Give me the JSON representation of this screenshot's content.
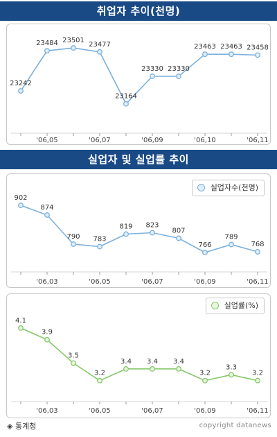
{
  "sections": {
    "employed_title": "취업자 추이(천명)",
    "unemployed_title": "실업자 및 실업률 추이"
  },
  "footer": {
    "source": "◈ 통계청",
    "credit": "copyright datanews"
  },
  "colors": {
    "banner": "#1a4a86",
    "blue_line": "#7bb0dc",
    "blue_fill": "#dfeefa",
    "green_line": "#86c96a",
    "green_fill": "#e9f7df"
  },
  "chart_data": [
    {
      "type": "line",
      "title": "취업자 추이(천명)",
      "x": [
        "",
        "'06,05",
        "",
        "'06,07",
        "",
        "'06,09",
        "",
        "'06,10",
        "",
        "'06,11"
      ],
      "series": [
        {
          "values": [
            23242,
            23484,
            23501,
            23477,
            23164,
            23330,
            23330,
            23463,
            23463,
            23458
          ]
        }
      ],
      "ylim": [
        23100,
        23560
      ],
      "grid": false,
      "legend": "none"
    },
    {
      "type": "line",
      "title": "실업자 및 실업률 추이",
      "x": [
        "",
        "'06,03",
        "",
        "'06,05",
        "",
        "'06,07",
        "",
        "'06,09",
        "",
        "'06,11"
      ],
      "series": [
        {
          "name": "실업자수(천명)",
          "values": [
            902,
            874,
            790,
            783,
            819,
            823,
            807,
            766,
            789,
            768
          ]
        }
      ],
      "ylim": [
        740,
        930
      ],
      "grid": false,
      "legend": "top-right"
    },
    {
      "type": "line",
      "x": [
        "",
        "'06,03",
        "",
        "'06,05",
        "",
        "'06,07",
        "",
        "'06,09",
        "",
        "'06,11"
      ],
      "series": [
        {
          "name": "실업률(%)",
          "values": [
            4.1,
            3.9,
            3.5,
            3.2,
            3.4,
            3.4,
            3.4,
            3.2,
            3.3,
            3.2
          ]
        }
      ],
      "ylim": [
        2.9,
        4.3
      ],
      "grid": false,
      "legend": "top-right"
    }
  ]
}
